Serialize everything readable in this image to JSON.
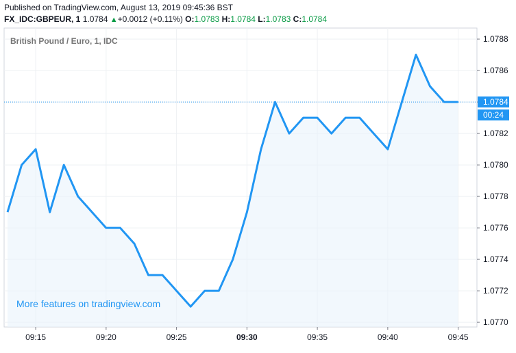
{
  "header": {
    "published": "Published on TradingView.com, August 13, 2019 09:45:36 BST",
    "symbol": "FX_IDC:GBPEUR, 1",
    "last": "1.0784",
    "change": "+0.0012 (+0.11%)",
    "open_label": "O:",
    "open_value": "1.0783",
    "high_label": "H:",
    "high_value": "1.0784",
    "low_label": "L:",
    "low_value": "1.0783",
    "close_label": "C:",
    "close_value": "1.0784"
  },
  "colors": {
    "line": "#2196f3",
    "area_fill": "#eaf4fc",
    "last_price_badge": "#2196f3",
    "up": "#089a44",
    "grid": "#eef0f3"
  },
  "chart_data": {
    "type": "area",
    "title": "British Pound / Euro, 1, IDC",
    "watermark": "More features on tradingview.com",
    "x": [
      "09:13",
      "09:14",
      "09:15",
      "09:16",
      "09:17",
      "09:18",
      "09:19",
      "09:20",
      "09:21",
      "09:22",
      "09:23",
      "09:24",
      "09:25",
      "09:26",
      "09:27",
      "09:28",
      "09:29",
      "09:30",
      "09:31",
      "09:32",
      "09:33",
      "09:34",
      "09:35",
      "09:36",
      "09:37",
      "09:38",
      "09:39",
      "09:40",
      "09:41",
      "09:42",
      "09:43",
      "09:44",
      "09:45"
    ],
    "values": [
      1.0777,
      1.078,
      1.0781,
      1.0777,
      1.078,
      1.0778,
      1.0777,
      1.0776,
      1.0776,
      1.0775,
      1.0773,
      1.0773,
      1.0772,
      1.0771,
      1.0772,
      1.0772,
      1.0774,
      1.0777,
      1.0781,
      1.0784,
      1.0782,
      1.0783,
      1.0783,
      1.0782,
      1.0783,
      1.0783,
      1.0782,
      1.0781,
      1.0784,
      1.0787,
      1.0785,
      1.0784,
      1.0784
    ],
    "x_ticks": [
      "09:15",
      "09:20",
      "09:25",
      "09:30",
      "09:35",
      "09:40",
      "09:45"
    ],
    "x_tick_bold": "09:30",
    "y_ticks": [
      "1.0770",
      "1.0772",
      "1.0774",
      "1.0776",
      "1.0778",
      "1.0780",
      "1.0782",
      "1.0784",
      "1.0786",
      "1.0788"
    ],
    "ylim": [
      1.07697,
      1.07887
    ],
    "last_price_label": "1.0784",
    "countdown_label": "00:24",
    "grid": true
  }
}
